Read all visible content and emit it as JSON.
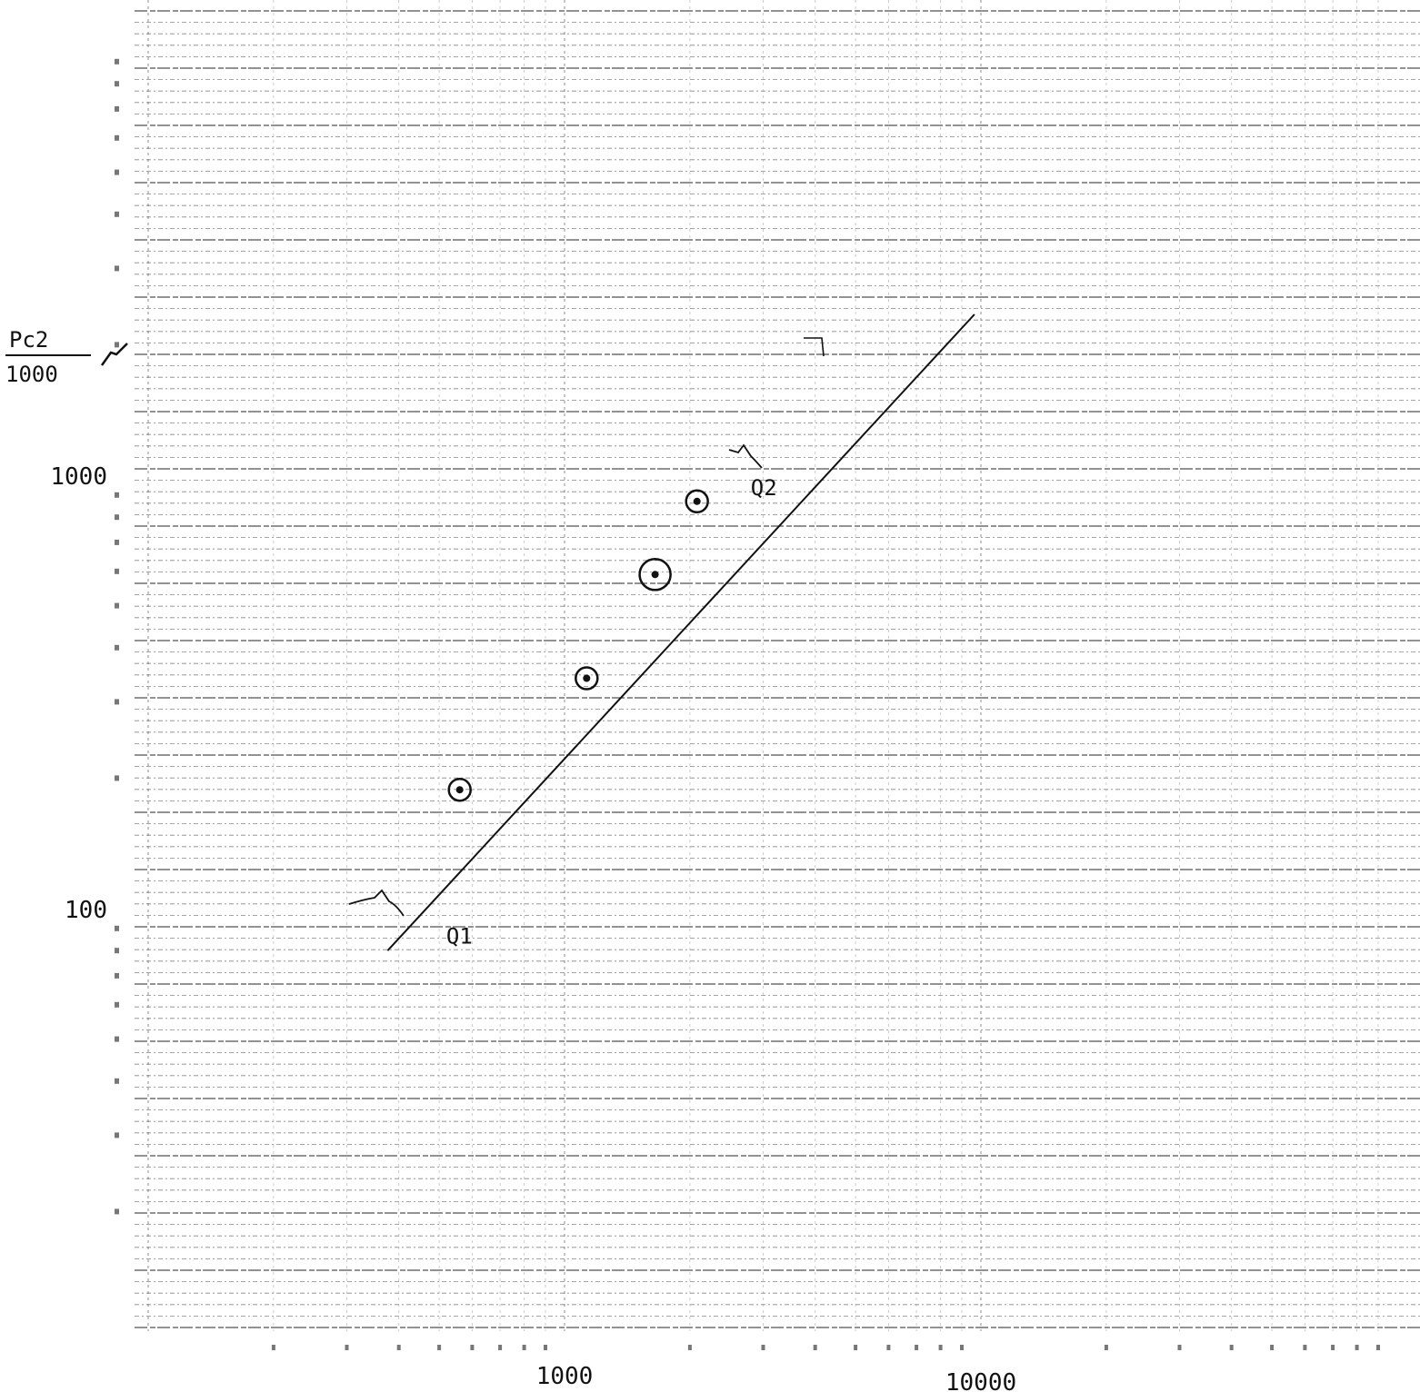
{
  "chart_data": {
    "type": "line",
    "title": "",
    "xlabel": "",
    "ylabel_num": "Pc2",
    "ylabel_den": "1000",
    "xscale": "log",
    "yscale": "log",
    "xlim": [
      200,
      60000
    ],
    "ylim": [
      11,
      3000
    ],
    "grid": true,
    "x_tick_labels": [
      {
        "value": 1000,
        "text": "1000"
      },
      {
        "value": 10000,
        "text": "10000"
      }
    ],
    "y_tick_labels": [
      {
        "value": 1000,
        "text": "1000"
      },
      {
        "value": 100,
        "text": "100"
      }
    ],
    "series": [
      {
        "kind": "fit-line",
        "x": [
          376,
          9650
        ],
        "y": [
          80,
          2350
        ]
      },
      {
        "kind": "circled-points",
        "x": [
          560,
          1130,
          1650,
          2080
        ],
        "y": [
          188,
          340,
          590,
          870
        ]
      }
    ],
    "annotations": [
      {
        "text": "Q1",
        "x": 520,
        "y": 83
      },
      {
        "text": "Q2",
        "x": 2800,
        "y": 900
      }
    ]
  }
}
